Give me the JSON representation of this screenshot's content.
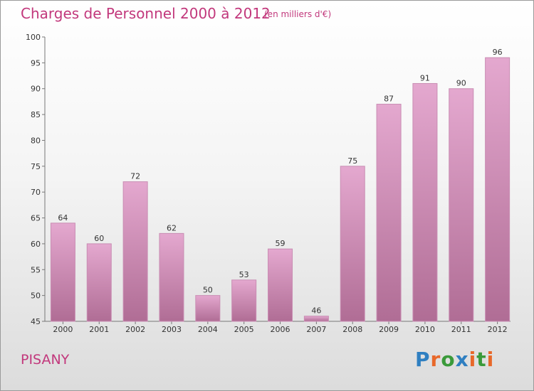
{
  "title": "Charges de Personnel 2000 à 2012",
  "subtitle": "(en milliers d'€)",
  "town": "PISANY",
  "brand": {
    "text": "Proxiti",
    "letter_colors": [
      "#2f7fc1",
      "#e8682a",
      "#3a9a3a",
      "#2f7fc1",
      "#e8682a",
      "#3a9a3a",
      "#e8682a"
    ]
  },
  "colors": {
    "bar_top": "#e4a8cf",
    "bar_bottom": "#b06d95",
    "title": "#c2387c"
  },
  "chart_data": {
    "type": "bar",
    "categories": [
      "2000",
      "2001",
      "2002",
      "2003",
      "2004",
      "2005",
      "2006",
      "2007",
      "2008",
      "2009",
      "2010",
      "2011",
      "2012"
    ],
    "values": [
      64,
      60,
      72,
      62,
      50,
      53,
      59,
      46,
      75,
      87,
      91,
      90,
      96
    ],
    "ylim": [
      45,
      100
    ],
    "yticks": [
      45,
      50,
      55,
      60,
      65,
      70,
      75,
      80,
      85,
      90,
      95,
      100
    ],
    "grid": false
  }
}
